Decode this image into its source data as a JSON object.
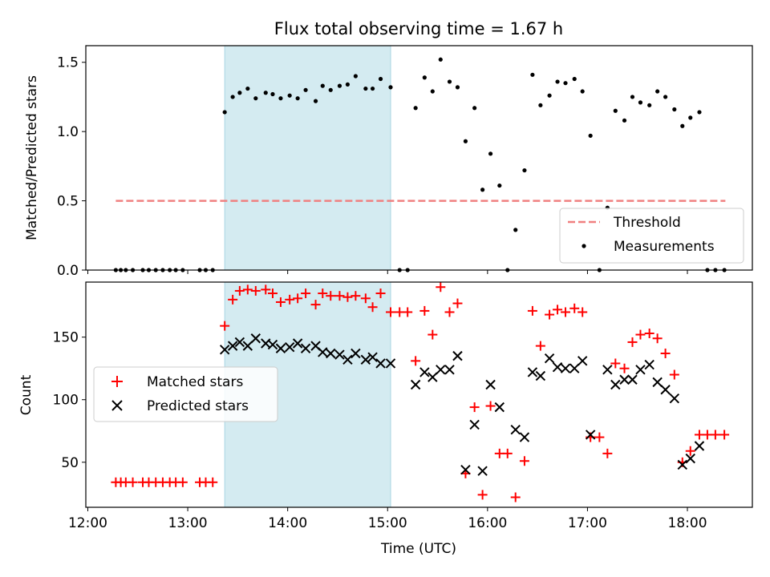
{
  "chart_data": {
    "type": "scatter",
    "title": "Flux total observing time = 1.67 h",
    "xlabel": "Time (UTC)",
    "x_unit": "hours UTC",
    "x_ticks": [
      {
        "value": 12,
        "label": "12:00"
      },
      {
        "value": 13,
        "label": "13:00"
      },
      {
        "value": 14,
        "label": "14:00"
      },
      {
        "value": 15,
        "label": "15:00"
      },
      {
        "value": 16,
        "label": "16:00"
      },
      {
        "value": 17,
        "label": "17:00"
      },
      {
        "value": 18,
        "label": "18:00"
      }
    ],
    "xlim": [
      11.98,
      18.65
    ],
    "highlight_span": {
      "start": 13.37,
      "end": 15.03,
      "color": "#d4ebf1"
    },
    "panels": [
      {
        "name": "ratio",
        "ylabel": "Matched/Predicted stars",
        "ylim": [
          0,
          1.62
        ],
        "y_ticks": [
          {
            "value": 0,
            "label": "0.0"
          },
          {
            "value": 0.5,
            "label": "0.5"
          },
          {
            "value": 1.0,
            "label": "1.0"
          },
          {
            "value": 1.5,
            "label": "1.5"
          }
        ],
        "legend": {
          "position": "lower right",
          "entries": [
            "Threshold",
            "Measurements"
          ]
        },
        "series": [
          {
            "name": "Threshold",
            "kind": "dashed-line",
            "color": "#f08080",
            "x": [
              12.28,
              18.38
            ],
            "y": [
              0.5,
              0.5
            ]
          },
          {
            "name": "Measurements",
            "kind": "dot",
            "color": "#000000",
            "x": [
              12.28,
              12.33,
              12.38,
              12.45,
              12.55,
              12.61,
              12.68,
              12.75,
              12.82,
              12.88,
              12.95,
              13.12,
              13.18,
              13.25,
              13.37,
              13.45,
              13.52,
              13.6,
              13.68,
              13.78,
              13.85,
              13.93,
              14.02,
              14.1,
              14.18,
              14.28,
              14.35,
              14.43,
              14.52,
              14.6,
              14.68,
              14.78,
              14.85,
              14.93,
              15.03,
              15.12,
              15.2,
              15.28,
              15.37,
              15.45,
              15.53,
              15.62,
              15.7,
              15.78,
              15.87,
              15.95,
              16.03,
              16.12,
              16.2,
              16.28,
              16.37,
              16.45,
              16.53,
              16.62,
              16.7,
              16.78,
              16.87,
              16.95,
              17.03,
              17.12,
              17.2,
              17.28,
              17.37,
              17.45,
              17.53,
              17.62,
              17.7,
              17.78,
              17.87,
              17.95,
              18.03,
              18.12,
              18.2,
              18.28,
              18.37
            ],
            "y": [
              0,
              0,
              0,
              0,
              0,
              0,
              0,
              0,
              0,
              0,
              0,
              0,
              0,
              0,
              1.14,
              1.25,
              1.28,
              1.31,
              1.24,
              1.28,
              1.27,
              1.24,
              1.26,
              1.24,
              1.3,
              1.22,
              1.33,
              1.3,
              1.33,
              1.34,
              1.4,
              1.31,
              1.31,
              1.38,
              1.32,
              0,
              0,
              1.17,
              1.39,
              1.29,
              1.52,
              1.36,
              1.32,
              0.93,
              1.17,
              0.58,
              0.84,
              0.61,
              0,
              0.29,
              0.72,
              1.41,
              1.19,
              1.26,
              1.36,
              1.35,
              1.38,
              1.29,
              0.97,
              0,
              0.45,
              1.15,
              1.08,
              1.25,
              1.21,
              1.19,
              1.29,
              1.25,
              1.16,
              1.04,
              1.1,
              1.14,
              0,
              0,
              0
            ]
          }
        ]
      },
      {
        "name": "counts",
        "ylabel": "Count",
        "ylim": [
          14,
          194
        ],
        "y_ticks": [
          {
            "value": 50,
            "label": "50"
          },
          {
            "value": 100,
            "label": "100"
          },
          {
            "value": 150,
            "label": "150"
          }
        ],
        "legend": {
          "position": "center left",
          "entries": [
            "Matched stars",
            "Predicted stars"
          ]
        },
        "series": [
          {
            "name": "Matched stars",
            "kind": "plus",
            "color": "#ff0000",
            "x": [
              12.28,
              12.33,
              12.38,
              12.45,
              12.55,
              12.61,
              12.68,
              12.75,
              12.82,
              12.88,
              12.95,
              13.12,
              13.18,
              13.25,
              13.37,
              13.45,
              13.52,
              13.6,
              13.68,
              13.78,
              13.85,
              13.93,
              14.02,
              14.1,
              14.18,
              14.28,
              14.35,
              14.43,
              14.52,
              14.6,
              14.68,
              14.78,
              14.85,
              14.93,
              15.03,
              15.12,
              15.2,
              15.28,
              15.37,
              15.45,
              15.53,
              15.62,
              15.7,
              15.78,
              15.87,
              15.95,
              16.03,
              16.12,
              16.2,
              16.28,
              16.37,
              16.45,
              16.53,
              16.62,
              16.7,
              16.78,
              16.87,
              16.95,
              17.03,
              17.12,
              17.2,
              17.28,
              17.37,
              17.45,
              17.53,
              17.62,
              17.7,
              17.78,
              17.87,
              17.95,
              18.03,
              18.12,
              18.2,
              18.28,
              18.37
            ],
            "y": [
              34,
              34,
              34,
              34,
              34,
              34,
              34,
              34,
              34,
              34,
              34,
              34,
              34,
              34,
              159,
              180,
              187,
              188,
              187,
              188,
              185,
              178,
              180,
              181,
              185,
              176,
              185,
              183,
              183,
              182,
              183,
              181,
              174,
              185,
              170,
              170,
              170,
              131,
              171,
              152,
              190,
              170,
              177,
              41,
              94,
              24,
              95,
              57,
              57,
              22,
              51,
              171,
              143,
              168,
              172,
              170,
              173,
              170,
              70,
              70,
              57,
              129,
              125,
              146,
              152,
              153,
              149,
              137,
              120,
              50,
              59,
              72,
              72,
              72,
              72
            ]
          },
          {
            "name": "Predicted stars",
            "kind": "x",
            "color": "#000000",
            "x": [
              13.37,
              13.45,
              13.52,
              13.6,
              13.68,
              13.78,
              13.85,
              13.93,
              14.02,
              14.1,
              14.18,
              14.28,
              14.35,
              14.43,
              14.52,
              14.6,
              14.68,
              14.78,
              14.85,
              14.93,
              15.03,
              15.28,
              15.37,
              15.45,
              15.53,
              15.62,
              15.7,
              15.78,
              15.87,
              15.95,
              16.03,
              16.12,
              16.28,
              16.37,
              16.45,
              16.53,
              16.62,
              16.7,
              16.78,
              16.87,
              16.95,
              17.03,
              17.2,
              17.28,
              17.37,
              17.45,
              17.53,
              17.62,
              17.7,
              17.78,
              17.87,
              17.95,
              18.03,
              18.12
            ],
            "y": [
              140,
              143,
              146,
              143,
              149,
              145,
              144,
              141,
              142,
              145,
              141,
              143,
              138,
              137,
              136,
              132,
              137,
              132,
              134,
              129,
              129,
              112,
              122,
              118,
              124,
              124,
              135,
              44,
              80,
              43,
              112,
              94,
              76,
              70,
              122,
              119,
              133,
              126,
              125,
              125,
              131,
              72,
              124,
              112,
              116,
              116,
              124,
              128,
              114,
              108,
              101,
              48,
              53,
              63
            ]
          }
        ]
      }
    ]
  }
}
